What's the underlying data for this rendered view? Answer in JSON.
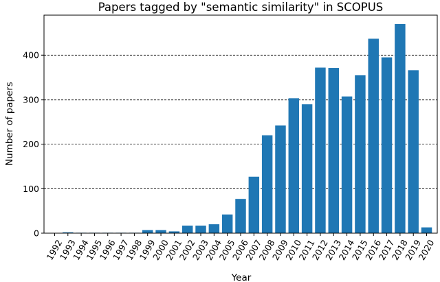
{
  "chart_data": {
    "type": "bar",
    "title": "Papers tagged by \"semantic similarity\" in SCOPUS",
    "xlabel": "Year",
    "ylabel": "Number of papers",
    "categories": [
      "1992",
      "1993",
      "1994",
      "1995",
      "1996",
      "1997",
      "1998",
      "1999",
      "2000",
      "2001",
      "2002",
      "2003",
      "2004",
      "2005",
      "2006",
      "2007",
      "2008",
      "2009",
      "2010",
      "2011",
      "2012",
      "2013",
      "2014",
      "2015",
      "2016",
      "2017",
      "2018",
      "2019",
      "2020"
    ],
    "values": [
      0,
      2,
      1,
      1,
      1,
      1,
      1,
      7,
      7,
      4,
      17,
      17,
      20,
      42,
      77,
      127,
      220,
      242,
      303,
      290,
      372,
      371,
      307,
      355,
      437,
      395,
      470,
      366,
      13
    ],
    "ylim": [
      0,
      490
    ],
    "yticks": [
      0,
      100,
      200,
      300,
      400
    ],
    "grid": "horizontal dashed",
    "bar_color": "#1f77b4"
  }
}
